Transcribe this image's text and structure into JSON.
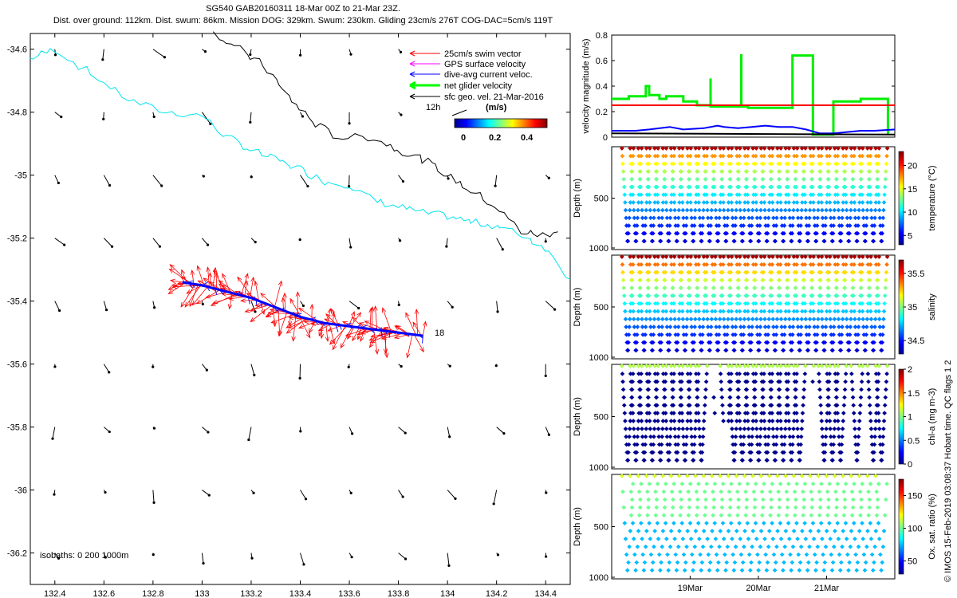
{
  "header": {
    "line1": "SG540 GAB20160311 18-Mar 00Z to 21-Mar 23Z.",
    "line2": "Dist. over ground: 112km. Dist. swum: 86km. Mission DOG: 329km. Swum: 230km. Gliding 23cm/s 276T COG-DAC=5cm/s 119T"
  },
  "chart_data": [
    {
      "type": "scatter",
      "name": "map",
      "xlim": [
        132.3,
        134.5
      ],
      "ylim": [
        -36.3,
        -34.55
      ],
      "xticks": [
        132.4,
        132.6,
        132.8,
        133.0,
        133.2,
        133.4,
        133.6,
        133.8,
        134.0,
        134.2,
        134.4
      ],
      "xtick_labels": [
        "132.4",
        "132.6",
        "132.8",
        "133",
        "133.2",
        "133.4",
        "133.6",
        "133.8",
        "134",
        "134.2",
        "134.4"
      ],
      "yticks": [
        -34.6,
        -34.8,
        -35.0,
        -35.2,
        -35.4,
        -35.6,
        -35.8,
        -36.0,
        -36.2
      ],
      "ytick_labels": [
        "-34.6",
        "-34.8",
        "-35",
        "-35.2",
        "-35.4",
        "-35.6",
        "-35.8",
        "-36",
        "-36.2"
      ],
      "legend": [
        {
          "label": "25cm/s swim vector",
          "color": "#ff0000"
        },
        {
          "label": "GPS surface velocity",
          "color": "#ff00ff"
        },
        {
          "label": "dive-avg current veloc.",
          "color": "#0000ff"
        },
        {
          "label": "net glider velocity",
          "color": "#00ff00"
        },
        {
          "label": "sfc geo. vel. 21-Mar-2016",
          "color": "#000000"
        }
      ],
      "colorbar": {
        "title": "(m/s)",
        "ticks": [
          "0",
          "0.2",
          "0.4"
        ],
        "range": [
          0,
          0.5
        ]
      },
      "ref_arrow_label": "12h",
      "isobaths_label": "isobaths: 0   200  1000m",
      "track_end_label": "18",
      "isobath_200": [
        [
          132.3,
          -34.63
        ],
        [
          132.4,
          -34.6
        ],
        [
          132.55,
          -34.68
        ],
        [
          132.7,
          -34.76
        ],
        [
          132.85,
          -34.8
        ],
        [
          133.0,
          -34.81
        ],
        [
          133.1,
          -34.88
        ],
        [
          133.2,
          -34.92
        ],
        [
          133.3,
          -34.95
        ],
        [
          133.4,
          -34.98
        ],
        [
          133.5,
          -35.02
        ],
        [
          133.6,
          -35.03
        ],
        [
          133.7,
          -35.08
        ],
        [
          133.8,
          -35.1
        ],
        [
          133.9,
          -35.12
        ],
        [
          134.0,
          -35.13
        ],
        [
          134.1,
          -35.15
        ],
        [
          134.2,
          -35.16
        ],
        [
          134.3,
          -35.19
        ],
        [
          134.4,
          -35.23
        ],
        [
          134.5,
          -35.33
        ]
      ],
      "isobath_1000": [
        [
          133.05,
          -34.55
        ],
        [
          133.15,
          -34.6
        ],
        [
          133.25,
          -34.65
        ],
        [
          133.35,
          -34.75
        ],
        [
          133.45,
          -34.83
        ],
        [
          133.55,
          -34.88
        ],
        [
          133.7,
          -34.88
        ],
        [
          133.8,
          -34.92
        ],
        [
          133.9,
          -34.95
        ],
        [
          134.0,
          -35.0
        ],
        [
          134.1,
          -35.05
        ],
        [
          134.2,
          -35.1
        ],
        [
          134.3,
          -35.18
        ],
        [
          134.38,
          -35.19
        ],
        [
          134.45,
          -35.18
        ]
      ],
      "track": [
        [
          132.92,
          -35.34
        ],
        [
          133.0,
          -35.35
        ],
        [
          133.1,
          -35.37
        ],
        [
          133.2,
          -35.39
        ],
        [
          133.3,
          -35.42
        ],
        [
          133.4,
          -35.45
        ],
        [
          133.5,
          -35.47
        ],
        [
          133.6,
          -35.48
        ],
        [
          133.7,
          -35.49
        ],
        [
          133.8,
          -35.5
        ],
        [
          133.9,
          -35.51
        ]
      ]
    },
    {
      "type": "line",
      "name": "velocity",
      "ylabel": "velocity magnitude (m/s)",
      "ylim": [
        0,
        0.8
      ],
      "yticks": [
        "0",
        "0.2",
        "0.4",
        "0.6",
        "0.8"
      ],
      "x_range_days": [
        17.85,
        22.0
      ],
      "series": [
        {
          "name": "net glider velocity",
          "color": "#00ee00",
          "x": [
            17.85,
            18.1,
            18.1,
            18.35,
            18.35,
            18.4,
            18.4,
            18.55,
            18.55,
            18.65,
            18.65,
            18.9,
            18.9,
            19.1,
            19.1,
            19.3,
            19.3,
            19.3,
            19.55,
            19.55,
            19.75,
            19.75,
            19.75,
            19.85,
            19.85,
            19.85,
            20.5,
            20.5,
            20.5,
            20.8,
            20.8,
            20.8,
            21.1,
            21.1,
            21.5,
            21.5,
            21.9,
            21.9
          ],
          "y": [
            0.3,
            0.3,
            0.32,
            0.32,
            0.4,
            0.4,
            0.33,
            0.33,
            0.3,
            0.3,
            0.32,
            0.32,
            0.28,
            0.28,
            0.25,
            0.25,
            0.46,
            0.24,
            0.24,
            0.24,
            0.24,
            0.65,
            0.24,
            0.24,
            0.22,
            0.23,
            0.23,
            0.25,
            0.64,
            0.64,
            0.25,
            0.02,
            0.02,
            0.28,
            0.28,
            0.3,
            0.3,
            0.02
          ]
        },
        {
          "name": "25cm/s swim",
          "color": "#ff0000",
          "x": [
            17.85,
            22.0
          ],
          "y": [
            0.25,
            0.25
          ]
        },
        {
          "name": "dive-avg current",
          "color": "#0000ff",
          "x": [
            17.85,
            18.2,
            18.4,
            18.7,
            18.9,
            19.2,
            19.4,
            19.5,
            19.7,
            19.9,
            20.1,
            20.3,
            20.5,
            20.7,
            20.9,
            21.1,
            21.3,
            21.5,
            21.7,
            22.0
          ],
          "y": [
            0.05,
            0.05,
            0.06,
            0.08,
            0.06,
            0.07,
            0.09,
            0.08,
            0.07,
            0.08,
            0.09,
            0.08,
            0.08,
            0.06,
            0.03,
            0.03,
            0.04,
            0.05,
            0.05,
            0.06
          ]
        },
        {
          "name": "sfc geo",
          "color": "#000000",
          "x": [
            17.85,
            22.0
          ],
          "y": [
            0.03,
            0.02
          ]
        }
      ]
    },
    {
      "type": "scatter",
      "name": "temperature",
      "ylabel": "Depth (m)",
      "cblabel": "temperature (°C)",
      "yticks": [
        "500",
        "1000"
      ],
      "cbticks": [
        "5",
        "10",
        "15",
        "20"
      ],
      "cbrange": [
        3,
        23
      ],
      "x_range_days": [
        17.85,
        22.0
      ],
      "dive_days": [
        18.0,
        18.12,
        18.24,
        18.36,
        18.48,
        18.6,
        18.72,
        18.84,
        18.96,
        19.08,
        19.2,
        19.32,
        19.44,
        19.56,
        19.68,
        19.8,
        19.92,
        20.04,
        20.16,
        20.28,
        20.4,
        20.52,
        20.64,
        20.76,
        20.88,
        21.0,
        21.12,
        21.24,
        21.36,
        21.48,
        21.6,
        21.72
      ]
    },
    {
      "type": "scatter",
      "name": "salinity",
      "ylabel": "Depth (m)",
      "cblabel": "salinity",
      "yticks": [
        "500",
        "1000"
      ],
      "cbticks": [
        "34.5",
        "35",
        "35.5"
      ],
      "cbrange": [
        34.3,
        35.7
      ],
      "x_range_days": [
        17.85,
        22.0
      ],
      "dive_days": [
        18.0,
        18.12,
        18.24,
        18.36,
        18.48,
        18.6,
        18.72,
        18.84,
        18.96,
        19.08,
        19.2,
        19.32,
        19.44,
        19.56,
        19.68,
        19.8,
        19.92,
        20.04,
        20.16,
        20.28,
        20.4,
        20.52,
        20.64,
        20.76,
        20.88,
        21.0,
        21.12,
        21.24,
        21.36,
        21.48,
        21.6,
        21.72
      ]
    },
    {
      "type": "scatter",
      "name": "chla",
      "ylabel": "Depth (m)",
      "cblabel": "chl-a (mg m-3)",
      "yticks": [
        "500",
        "1000"
      ],
      "cbticks": [
        "0",
        "0.5",
        "1",
        "1.5",
        "2"
      ],
      "cbrange": [
        0,
        2
      ],
      "x_range_days": [
        17.85,
        22.0
      ],
      "dive_days": [
        18.0,
        18.12,
        18.24,
        18.36,
        18.48,
        18.6,
        18.72,
        18.84,
        18.96,
        19.08,
        19.2,
        19.32,
        19.44,
        19.56,
        19.68,
        19.8,
        19.92,
        20.04,
        20.16,
        20.28,
        20.4,
        20.52,
        20.64,
        20.76,
        20.88,
        21.0,
        21.12,
        21.24,
        21.36,
        21.48,
        21.6,
        21.72
      ]
    },
    {
      "type": "scatter",
      "name": "oxygen",
      "ylabel": "Depth (m)",
      "cblabel": "Ox. sat. ratio (%)",
      "yticks": [
        "500",
        "1000"
      ],
      "cbticks": [
        "50",
        "100",
        "150"
      ],
      "cbrange": [
        30,
        175
      ],
      "x_range_days": [
        17.85,
        22.0
      ],
      "xtick_labels": [
        "19Mar",
        "20Mar",
        "21Mar"
      ],
      "xticks_days": [
        19.0,
        20.0,
        21.0
      ],
      "dive_days": [
        18.0,
        18.12,
        18.24,
        18.36,
        18.48,
        18.6,
        18.72,
        18.84,
        18.96,
        19.08,
        19.2,
        19.32,
        19.44,
        19.56,
        19.68,
        19.8,
        19.92,
        20.04,
        20.16,
        20.28,
        20.4,
        20.52,
        20.64,
        20.76,
        20.88,
        21.0,
        21.12,
        21.24,
        21.36,
        21.48,
        21.6,
        21.72
      ]
    }
  ],
  "watermark": "© IMOS 15-Feb-2019 03:08:37 Hobart time. QC flags 1  2"
}
